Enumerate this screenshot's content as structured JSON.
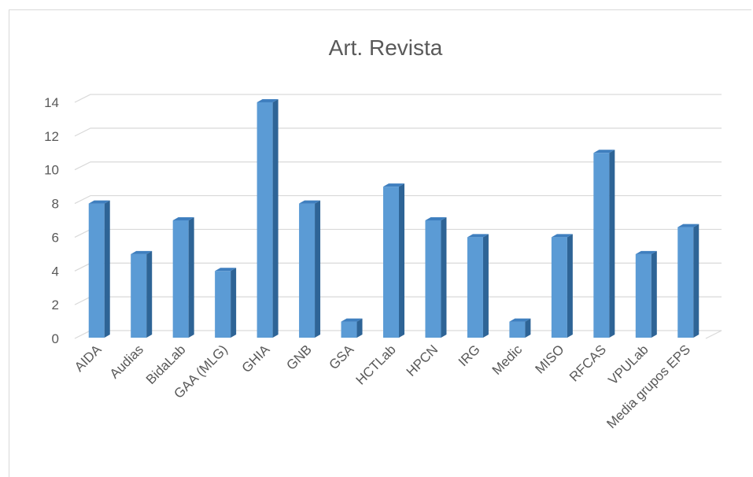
{
  "chart_data": {
    "type": "bar",
    "title": "Art. Revista",
    "xlabel": "",
    "ylabel": "",
    "categories": [
      "AIDA",
      "Audias",
      "BidaLab",
      "GAA (MLG)",
      "GHIA",
      "GNB",
      "GSA",
      "HCTLab",
      "HPCN",
      "IRG",
      "Medic",
      "MISO",
      "RFCAS",
      "VPULab",
      "Media grupos EPS"
    ],
    "values": [
      8,
      5,
      7,
      4,
      14,
      8,
      1,
      9,
      7,
      6,
      1,
      6,
      11,
      5,
      6.6
    ],
    "ylim": [
      0,
      14
    ],
    "yticks": [
      0,
      2,
      4,
      6,
      8,
      10,
      12,
      14
    ],
    "grid": true,
    "bar_style": "3d",
    "colors": {
      "bar_front": "#5b9bd5",
      "bar_side": "#2e6496",
      "bar_top": "#3f7fbf",
      "grid": "#d9d9d9",
      "text": "#595959"
    }
  }
}
